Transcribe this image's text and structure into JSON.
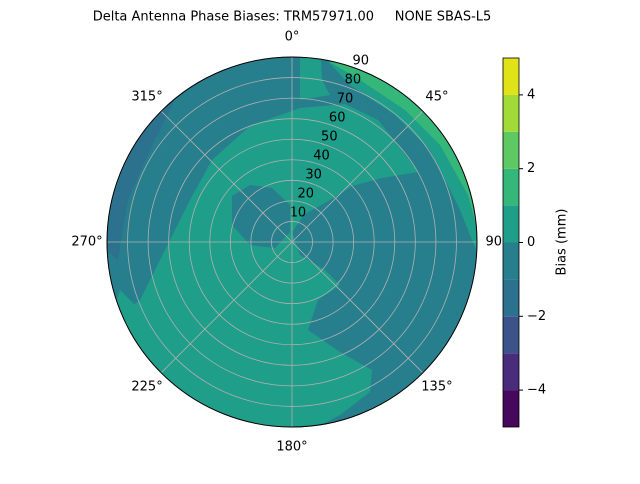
{
  "chart_data": {
    "type": "polar",
    "title": "Delta Antenna Phase Biases: TRM57971.00     NONE SBAS-L5",
    "rlim": [
      0,
      90
    ],
    "rticks": [
      10,
      20,
      30,
      40,
      50,
      60,
      70,
      80,
      90
    ],
    "thetaticks": [
      {
        "value": 0,
        "label": "0°"
      },
      {
        "value": 45,
        "label": "45°"
      },
      {
        "value": 90,
        "label": "90°"
      },
      {
        "value": 135,
        "label": "135°"
      },
      {
        "value": 180,
        "label": "180°"
      },
      {
        "value": 225,
        "label": "225°"
      },
      {
        "value": 270,
        "label": "270°"
      },
      {
        "value": 315,
        "label": "315°"
      }
    ],
    "theta_direction": "clockwise",
    "theta_zero": "N",
    "grid": true,
    "colorbar": {
      "label": "Bias (mm)",
      "levels": [
        -5,
        -4,
        -3,
        -2,
        -1,
        0,
        1,
        2,
        3,
        4,
        5
      ],
      "colors": [
        "#46085c",
        "#472d7b",
        "#3b528b",
        "#2c728e",
        "#277f8e",
        "#1f9e89",
        "#35b779",
        "#5ec962",
        "#a2da37",
        "#dfe318"
      ],
      "ticks": [
        {
          "value": -4,
          "label": "−4"
        },
        {
          "value": -2,
          "label": "−2"
        },
        0,
        2,
        4
      ]
    }
  }
}
